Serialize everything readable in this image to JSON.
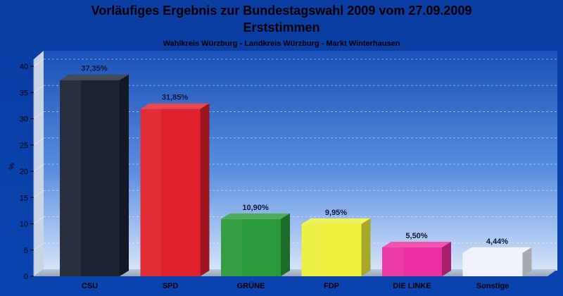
{
  "chart_data": {
    "type": "bar",
    "title": "Vorläufiges Ergebnis zur Bundestagswahl 2009 vom 27.09.2009",
    "title2": "Erststimmen",
    "subtitle": "Wahlkreis Würzburg - Landkreis Würzburg - Markt Winterhausen",
    "ylabel": "%",
    "xlabel": "",
    "ylim": [
      0,
      40
    ],
    "yticks": [
      0,
      5,
      10,
      15,
      20,
      25,
      30,
      35,
      40
    ],
    "grid": true,
    "categories": [
      "CSU",
      "SPD",
      "GRÜNE",
      "FDP",
      "DIE LINKE",
      "Sonstige"
    ],
    "values": [
      37.35,
      31.85,
      10.9,
      9.95,
      5.5,
      4.44
    ],
    "value_labels": [
      "37,35%",
      "31,85%",
      "10,90%",
      "9,95%",
      "5,50%",
      "4,44%"
    ],
    "colors": [
      "#1b2233",
      "#e0202c",
      "#2a9a3a",
      "#eef03a",
      "#ec2fa0",
      "#eef2fb"
    ]
  }
}
